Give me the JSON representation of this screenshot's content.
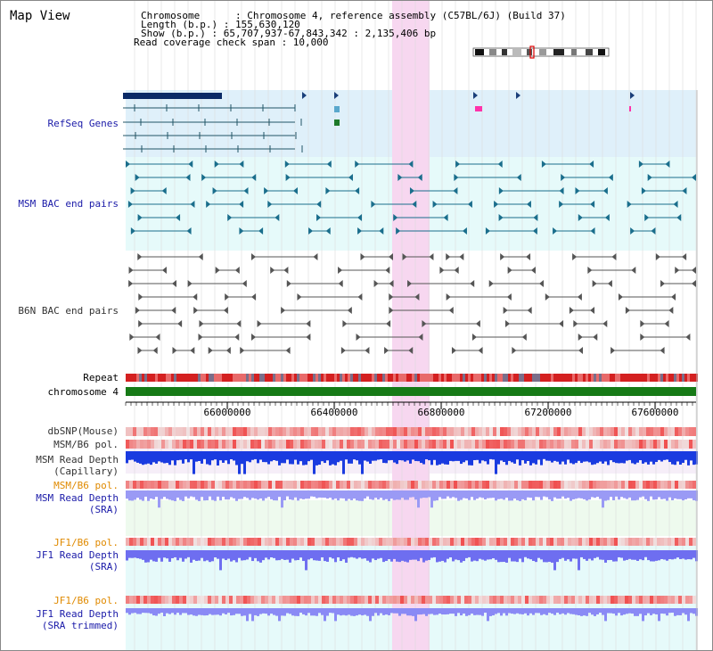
{
  "title": "Map View",
  "info": {
    "chromosome": "Chromosome      : Chromosome 4, reference assembly (C57BL/6J) (Build 37)",
    "length": "Length (b.p.) : 155,630,120",
    "show": "Show (b.p.) : 65,707,937-67,843,342 : 2,135,406 bp",
    "coverage": "Read coverage check span : 10,000"
  },
  "tracks": {
    "refseq": "RefSeq Genes",
    "msm_bac": "MSM BAC end pairs",
    "b6n_bac": "B6N BAC end pairs",
    "repeat": "Repeat",
    "chromosome": "chromosome 4",
    "dbsnp": "dbSNP(Mouse)",
    "msm_b6_pol_1": "MSM/B6 pol.",
    "msm_depth_cap_1": "MSM Read Depth",
    "msm_depth_cap_2": "(Capillary)",
    "msm_b6_pol_2": "MSM/B6 pol.",
    "msm_depth_sra_1": "MSM Read Depth",
    "msm_depth_sra_2": "(SRA)",
    "jf1_b6_pol_1": "JF1/B6 pol.",
    "jf1_depth_sra_1": "JF1 Read Depth",
    "jf1_depth_sra_2": "(SRA)",
    "jf1_b6_pol_2": "JF1/B6 pol.",
    "jf1_depth_trim_1": "JF1 Read Depth",
    "jf1_depth_trim_2": "(SRA trimmed)"
  },
  "axis": {
    "ticks": [
      "66000000",
      "66400000",
      "66800000",
      "67200000",
      "67600000"
    ]
  },
  "colors": {
    "refseq_bg": "#dff0fa",
    "msm_bac_bg": "#e6fafa",
    "highlight": "#f7d7f0",
    "chromosome_bar": "#167a16",
    "blue_label": "#1a1aa8",
    "orange_label": "#e08a00"
  }
}
